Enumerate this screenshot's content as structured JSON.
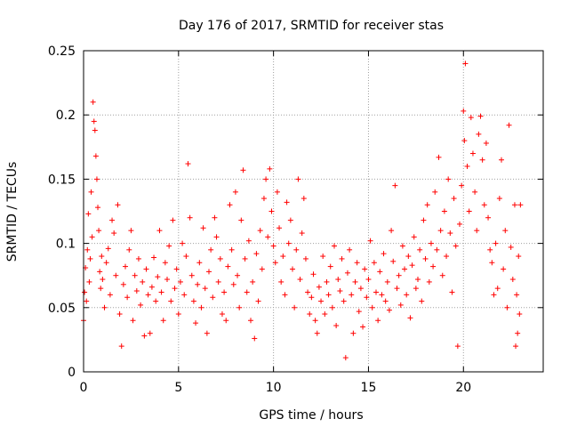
{
  "chart_data": {
    "type": "scatter",
    "title": "Day 176 of 2017, SRMTID for receiver stas",
    "xlabel": "GPS time / hours",
    "ylabel": "SRMTID / TECUs",
    "xlim": [
      0,
      24.2
    ],
    "ylim": [
      0,
      0.25
    ],
    "xticks": [
      0,
      5,
      10,
      15,
      20
    ],
    "xtick_labels": [
      "0",
      "5",
      "10",
      "15",
      "20"
    ],
    "yticks": [
      0,
      0.05,
      0.1,
      0.15,
      0.2,
      0.25
    ],
    "ytick_labels": [
      "0",
      "0.05",
      "0.1",
      "0.15",
      "0.2",
      "0.25"
    ],
    "grid": true,
    "marker": "+",
    "color": "#ff0000",
    "series": [
      {
        "name": "SRMTID",
        "points": [
          [
            0.0,
            0.04
          ],
          [
            0.05,
            0.062
          ],
          [
            0.1,
            0.081
          ],
          [
            0.15,
            0.055
          ],
          [
            0.2,
            0.095
          ],
          [
            0.25,
            0.123
          ],
          [
            0.3,
            0.07
          ],
          [
            0.35,
            0.088
          ],
          [
            0.4,
            0.14
          ],
          [
            0.45,
            0.105
          ],
          [
            0.5,
            0.21
          ],
          [
            0.55,
            0.195
          ],
          [
            0.6,
            0.188
          ],
          [
            0.65,
            0.168
          ],
          [
            0.7,
            0.15
          ],
          [
            0.75,
            0.128
          ],
          [
            0.8,
            0.11
          ],
          [
            0.85,
            0.078
          ],
          [
            0.9,
            0.065
          ],
          [
            0.95,
            0.09
          ],
          [
            1.0,
            0.072
          ],
          [
            1.1,
            0.05
          ],
          [
            1.2,
            0.085
          ],
          [
            1.3,
            0.096
          ],
          [
            1.4,
            0.06
          ],
          [
            1.5,
            0.118
          ],
          [
            1.6,
            0.108
          ],
          [
            1.7,
            0.075
          ],
          [
            1.8,
            0.13
          ],
          [
            1.9,
            0.045
          ],
          [
            2.0,
            0.02
          ],
          [
            2.1,
            0.068
          ],
          [
            2.2,
            0.082
          ],
          [
            2.3,
            0.058
          ],
          [
            2.4,
            0.095
          ],
          [
            2.5,
            0.11
          ],
          [
            2.6,
            0.04
          ],
          [
            2.7,
            0.075
          ],
          [
            2.8,
            0.063
          ],
          [
            2.9,
            0.088
          ],
          [
            3.0,
            0.052
          ],
          [
            3.1,
            0.07
          ],
          [
            3.2,
            0.028
          ],
          [
            3.3,
            0.08
          ],
          [
            3.4,
            0.06
          ],
          [
            3.5,
            0.03
          ],
          [
            3.6,
            0.066
          ],
          [
            3.7,
            0.089
          ],
          [
            3.8,
            0.055
          ],
          [
            3.9,
            0.074
          ],
          [
            4.0,
            0.11
          ],
          [
            4.1,
            0.062
          ],
          [
            4.2,
            0.04
          ],
          [
            4.3,
            0.085
          ],
          [
            4.4,
            0.072
          ],
          [
            4.5,
            0.098
          ],
          [
            4.6,
            0.055
          ],
          [
            4.7,
            0.118
          ],
          [
            4.8,
            0.065
          ],
          [
            4.9,
            0.08
          ],
          [
            5.0,
            0.045
          ],
          [
            5.1,
            0.07
          ],
          [
            5.2,
            0.1
          ],
          [
            5.3,
            0.06
          ],
          [
            5.4,
            0.09
          ],
          [
            5.5,
            0.162
          ],
          [
            5.6,
            0.12
          ],
          [
            5.7,
            0.075
          ],
          [
            5.8,
            0.055
          ],
          [
            5.9,
            0.038
          ],
          [
            6.0,
            0.068
          ],
          [
            6.1,
            0.085
          ],
          [
            6.2,
            0.05
          ],
          [
            6.3,
            0.112
          ],
          [
            6.4,
            0.065
          ],
          [
            6.5,
            0.03
          ],
          [
            6.6,
            0.078
          ],
          [
            6.7,
            0.095
          ],
          [
            6.8,
            0.058
          ],
          [
            6.9,
            0.12
          ],
          [
            7.0,
            0.105
          ],
          [
            7.1,
            0.07
          ],
          [
            7.2,
            0.088
          ],
          [
            7.3,
            0.045
          ],
          [
            7.4,
            0.062
          ],
          [
            7.5,
            0.04
          ],
          [
            7.6,
            0.082
          ],
          [
            7.7,
            0.13
          ],
          [
            7.8,
            0.095
          ],
          [
            7.9,
            0.068
          ],
          [
            8.0,
            0.14
          ],
          [
            8.1,
            0.075
          ],
          [
            8.2,
            0.05
          ],
          [
            8.3,
            0.118
          ],
          [
            8.4,
            0.157
          ],
          [
            8.5,
            0.088
          ],
          [
            8.6,
            0.062
          ],
          [
            8.7,
            0.102
          ],
          [
            8.8,
            0.04
          ],
          [
            8.9,
            0.07
          ],
          [
            9.0,
            0.026
          ],
          [
            9.1,
            0.092
          ],
          [
            9.2,
            0.055
          ],
          [
            9.3,
            0.11
          ],
          [
            9.4,
            0.08
          ],
          [
            9.5,
            0.135
          ],
          [
            9.6,
            0.15
          ],
          [
            9.7,
            0.105
          ],
          [
            9.8,
            0.158
          ],
          [
            9.9,
            0.125
          ],
          [
            10.0,
            0.098
          ],
          [
            10.1,
            0.085
          ],
          [
            10.2,
            0.14
          ],
          [
            10.3,
            0.112
          ],
          [
            10.4,
            0.07
          ],
          [
            10.5,
            0.09
          ],
          [
            10.6,
            0.06
          ],
          [
            10.7,
            0.132
          ],
          [
            10.8,
            0.1
          ],
          [
            10.9,
            0.118
          ],
          [
            11.0,
            0.08
          ],
          [
            11.1,
            0.05
          ],
          [
            11.2,
            0.095
          ],
          [
            11.3,
            0.15
          ],
          [
            11.4,
            0.072
          ],
          [
            11.5,
            0.108
          ],
          [
            11.6,
            0.135
          ],
          [
            11.7,
            0.088
          ],
          [
            11.8,
            0.062
          ],
          [
            11.9,
            0.045
          ],
          [
            12.0,
            0.058
          ],
          [
            12.1,
            0.076
          ],
          [
            12.2,
            0.04
          ],
          [
            12.3,
            0.03
          ],
          [
            12.4,
            0.066
          ],
          [
            12.5,
            0.055
          ],
          [
            12.6,
            0.09
          ],
          [
            12.7,
            0.045
          ],
          [
            12.8,
            0.07
          ],
          [
            12.9,
            0.06
          ],
          [
            13.0,
            0.082
          ],
          [
            13.1,
            0.05
          ],
          [
            13.2,
            0.098
          ],
          [
            13.3,
            0.036
          ],
          [
            13.4,
            0.072
          ],
          [
            13.5,
            0.063
          ],
          [
            13.6,
            0.088
          ],
          [
            13.7,
            0.055
          ],
          [
            13.8,
            0.011
          ],
          [
            13.9,
            0.077
          ],
          [
            14.0,
            0.095
          ],
          [
            14.1,
            0.06
          ],
          [
            14.2,
            0.03
          ],
          [
            14.3,
            0.07
          ],
          [
            14.4,
            0.085
          ],
          [
            14.5,
            0.047
          ],
          [
            14.6,
            0.065
          ],
          [
            14.7,
            0.035
          ],
          [
            14.8,
            0.08
          ],
          [
            14.9,
            0.058
          ],
          [
            15.0,
            0.072
          ],
          [
            15.1,
            0.102
          ],
          [
            15.2,
            0.05
          ],
          [
            15.3,
            0.085
          ],
          [
            15.4,
            0.062
          ],
          [
            15.5,
            0.04
          ],
          [
            15.6,
            0.078
          ],
          [
            15.7,
            0.06
          ],
          [
            15.8,
            0.092
          ],
          [
            15.9,
            0.055
          ],
          [
            16.0,
            0.07
          ],
          [
            16.1,
            0.048
          ],
          [
            16.2,
            0.11
          ],
          [
            16.3,
            0.086
          ],
          [
            16.4,
            0.145
          ],
          [
            16.5,
            0.065
          ],
          [
            16.6,
            0.075
          ],
          [
            16.7,
            0.052
          ],
          [
            16.8,
            0.098
          ],
          [
            16.9,
            0.08
          ],
          [
            17.0,
            0.06
          ],
          [
            17.1,
            0.09
          ],
          [
            17.2,
            0.042
          ],
          [
            17.3,
            0.083
          ],
          [
            17.4,
            0.105
          ],
          [
            17.5,
            0.065
          ],
          [
            17.6,
            0.072
          ],
          [
            17.7,
            0.095
          ],
          [
            17.8,
            0.055
          ],
          [
            17.9,
            0.118
          ],
          [
            18.0,
            0.088
          ],
          [
            18.1,
            0.13
          ],
          [
            18.2,
            0.07
          ],
          [
            18.3,
            0.1
          ],
          [
            18.4,
            0.082
          ],
          [
            18.5,
            0.14
          ],
          [
            18.6,
            0.095
          ],
          [
            18.7,
            0.167
          ],
          [
            18.8,
            0.11
          ],
          [
            18.9,
            0.075
          ],
          [
            19.0,
            0.125
          ],
          [
            19.1,
            0.09
          ],
          [
            19.2,
            0.15
          ],
          [
            19.3,
            0.108
          ],
          [
            19.4,
            0.062
          ],
          [
            19.5,
            0.135
          ],
          [
            19.6,
            0.098
          ],
          [
            19.7,
            0.02
          ],
          [
            19.8,
            0.115
          ],
          [
            19.9,
            0.145
          ],
          [
            20.0,
            0.203
          ],
          [
            20.05,
            0.18
          ],
          [
            20.1,
            0.24
          ],
          [
            20.2,
            0.16
          ],
          [
            20.3,
            0.125
          ],
          [
            20.4,
            0.198
          ],
          [
            20.5,
            0.17
          ],
          [
            20.6,
            0.14
          ],
          [
            20.7,
            0.11
          ],
          [
            20.8,
            0.185
          ],
          [
            20.9,
            0.199
          ],
          [
            21.0,
            0.165
          ],
          [
            21.1,
            0.13
          ],
          [
            21.2,
            0.178
          ],
          [
            21.3,
            0.12
          ],
          [
            21.4,
            0.095
          ],
          [
            21.5,
            0.085
          ],
          [
            21.6,
            0.06
          ],
          [
            21.7,
            0.1
          ],
          [
            21.8,
            0.065
          ],
          [
            21.9,
            0.135
          ],
          [
            22.0,
            0.165
          ],
          [
            22.1,
            0.08
          ],
          [
            22.2,
            0.11
          ],
          [
            22.3,
            0.05
          ],
          [
            22.4,
            0.192
          ],
          [
            22.5,
            0.097
          ],
          [
            22.6,
            0.072
          ],
          [
            22.7,
            0.13
          ],
          [
            22.75,
            0.02
          ],
          [
            22.8,
            0.06
          ],
          [
            22.85,
            0.03
          ],
          [
            22.9,
            0.09
          ],
          [
            22.95,
            0.045
          ],
          [
            23.0,
            0.13
          ]
        ]
      }
    ]
  }
}
